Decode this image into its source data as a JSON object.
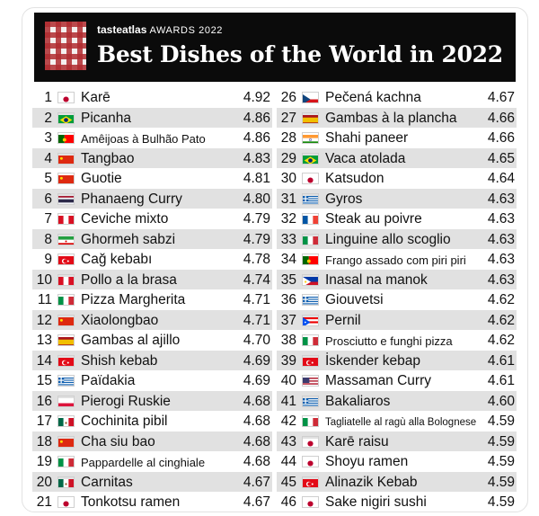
{
  "header": {
    "logo": "tasteatlas",
    "awards": "AWARDS 2022",
    "title": "Best Dishes of the World in 2022"
  },
  "flags": {
    "jp": {
      "bg": "#ffffff",
      "dot": "#bc002d"
    },
    "br": {
      "bg": "#009c3b",
      "diamond": "#ffdf00",
      "circle": "#002776"
    },
    "pt": {
      "left": "#006600",
      "right": "#ff0000"
    },
    "cn": {
      "bg": "#de2910"
    },
    "th": {
      "red": "#a51931",
      "white": "#f4f5f8",
      "blue": "#2d2a4a"
    },
    "pe": {
      "red": "#d91023",
      "white": "#ffffff"
    },
    "ir": {
      "green": "#239f40",
      "white": "#ffffff",
      "red": "#da0000"
    },
    "tr": {
      "bg": "#e30a17",
      "mark": "#ffffff"
    },
    "it": {
      "green": "#009246",
      "white": "#ffffff",
      "red": "#ce2b37"
    },
    "es": {
      "red": "#aa151b",
      "yellow": "#f1bf00"
    },
    "gr": {
      "blue": "#0d5eaf",
      "white": "#ffffff"
    },
    "pl": {
      "white": "#ffffff",
      "red": "#dc143c"
    },
    "mx": {
      "green": "#006847",
      "white": "#ffffff",
      "red": "#ce1126"
    },
    "cz": {
      "white": "#ffffff",
      "red": "#d7141a",
      "blue": "#11457e"
    },
    "in": {
      "saffron": "#ff9933",
      "white": "#ffffff",
      "green": "#138808"
    },
    "fr": {
      "blue": "#0055a4",
      "white": "#ffffff",
      "red": "#ef4135"
    },
    "ph": {
      "blue": "#0038a8",
      "red": "#ce1126",
      "white": "#ffffff"
    },
    "pr": {
      "red": "#ed0000",
      "white": "#ffffff",
      "blue": "#0050f0"
    },
    "us": {
      "red": "#b22234",
      "white": "#ffffff",
      "blue": "#3c3b6e"
    }
  },
  "left_column": [
    {
      "rank": "1",
      "flag": "jp",
      "dish": "Karē",
      "score": "4.92"
    },
    {
      "rank": "2",
      "flag": "br",
      "dish": "Picanha",
      "score": "4.86"
    },
    {
      "rank": "3",
      "flag": "pt",
      "dish": "Amêijoas à Bulhão Pato",
      "score": "4.86"
    },
    {
      "rank": "4",
      "flag": "cn",
      "dish": "Tangbao",
      "score": "4.83"
    },
    {
      "rank": "5",
      "flag": "cn",
      "dish": "Guotie",
      "score": "4.81"
    },
    {
      "rank": "6",
      "flag": "th",
      "dish": "Phanaeng Curry",
      "score": "4.80"
    },
    {
      "rank": "7",
      "flag": "pe",
      "dish": "Ceviche mixto",
      "score": "4.79"
    },
    {
      "rank": "8",
      "flag": "ir",
      "dish": "Ghormeh sabzi",
      "score": "4.79"
    },
    {
      "rank": "9",
      "flag": "tr",
      "dish": "Cağ kebabı",
      "score": "4.78"
    },
    {
      "rank": "10",
      "flag": "pe",
      "dish": "Pollo a la brasa",
      "score": "4.74"
    },
    {
      "rank": "11",
      "flag": "it",
      "dish": "Pizza Margherita",
      "score": "4.71"
    },
    {
      "rank": "12",
      "flag": "cn",
      "dish": "Xiaolongbao",
      "score": "4.71"
    },
    {
      "rank": "13",
      "flag": "es",
      "dish": "Gambas al ajillo",
      "score": "4.70"
    },
    {
      "rank": "14",
      "flag": "tr",
      "dish": "Shish kebab",
      "score": "4.69"
    },
    {
      "rank": "15",
      "flag": "gr",
      "dish": "Païdakia",
      "score": "4.69"
    },
    {
      "rank": "16",
      "flag": "pl",
      "dish": "Pierogi Ruskie",
      "score": "4.68"
    },
    {
      "rank": "17",
      "flag": "mx",
      "dish": "Cochinita pibil",
      "score": "4.68"
    },
    {
      "rank": "18",
      "flag": "cn",
      "dish": "Cha siu bao",
      "score": "4.68"
    },
    {
      "rank": "19",
      "flag": "it",
      "dish": "Pappardelle al cinghiale",
      "score": "4.68"
    },
    {
      "rank": "20",
      "flag": "mx",
      "dish": "Carnitas",
      "score": "4.67"
    },
    {
      "rank": "21",
      "flag": "jp",
      "dish": "Tonkotsu ramen",
      "score": "4.67"
    }
  ],
  "right_column": [
    {
      "rank": "26",
      "flag": "cz",
      "dish": "Pečená kachna",
      "score": "4.67"
    },
    {
      "rank": "27",
      "flag": "es",
      "dish": "Gambas à la plancha",
      "score": "4.66"
    },
    {
      "rank": "28",
      "flag": "in",
      "dish": "Shahi paneer",
      "score": "4.66"
    },
    {
      "rank": "29",
      "flag": "br",
      "dish": "Vaca atolada",
      "score": "4.65"
    },
    {
      "rank": "30",
      "flag": "jp",
      "dish": "Katsudon",
      "score": "4.64"
    },
    {
      "rank": "31",
      "flag": "gr",
      "dish": "Gyros",
      "score": "4.63"
    },
    {
      "rank": "32",
      "flag": "fr",
      "dish": "Steak au poivre",
      "score": "4.63"
    },
    {
      "rank": "33",
      "flag": "it",
      "dish": "Linguine allo scoglio",
      "score": "4.63"
    },
    {
      "rank": "34",
      "flag": "pt",
      "dish": "Frango assado com piri piri",
      "score": "4.63"
    },
    {
      "rank": "35",
      "flag": "ph",
      "dish": "Inasal na manok",
      "score": "4.63"
    },
    {
      "rank": "36",
      "flag": "gr",
      "dish": "Giouvetsi",
      "score": "4.62"
    },
    {
      "rank": "37",
      "flag": "pr",
      "dish": "Pernil",
      "score": "4.62"
    },
    {
      "rank": "38",
      "flag": "it",
      "dish": "Prosciutto e funghi pizza",
      "score": "4.62"
    },
    {
      "rank": "39",
      "flag": "tr",
      "dish": "İskender kebap",
      "score": "4.61"
    },
    {
      "rank": "40",
      "flag": "us",
      "dish": "Massaman Curry",
      "score": "4.61"
    },
    {
      "rank": "41",
      "flag": "gr",
      "dish": "Bakaliaros",
      "score": "4.60"
    },
    {
      "rank": "42",
      "flag": "it",
      "dish": "Tagliatelle al ragù alla Bolognese",
      "score": "4.59"
    },
    {
      "rank": "43",
      "flag": "jp",
      "dish": "Karē raisu",
      "score": "4.59"
    },
    {
      "rank": "44",
      "flag": "jp",
      "dish": "Shoyu ramen",
      "score": "4.59"
    },
    {
      "rank": "45",
      "flag": "tr",
      "dish": "Alinazik Kebab",
      "score": "4.59"
    },
    {
      "rank": "46",
      "flag": "jp",
      "dish": "Sake nigiri sushi",
      "score": "4.59"
    }
  ]
}
